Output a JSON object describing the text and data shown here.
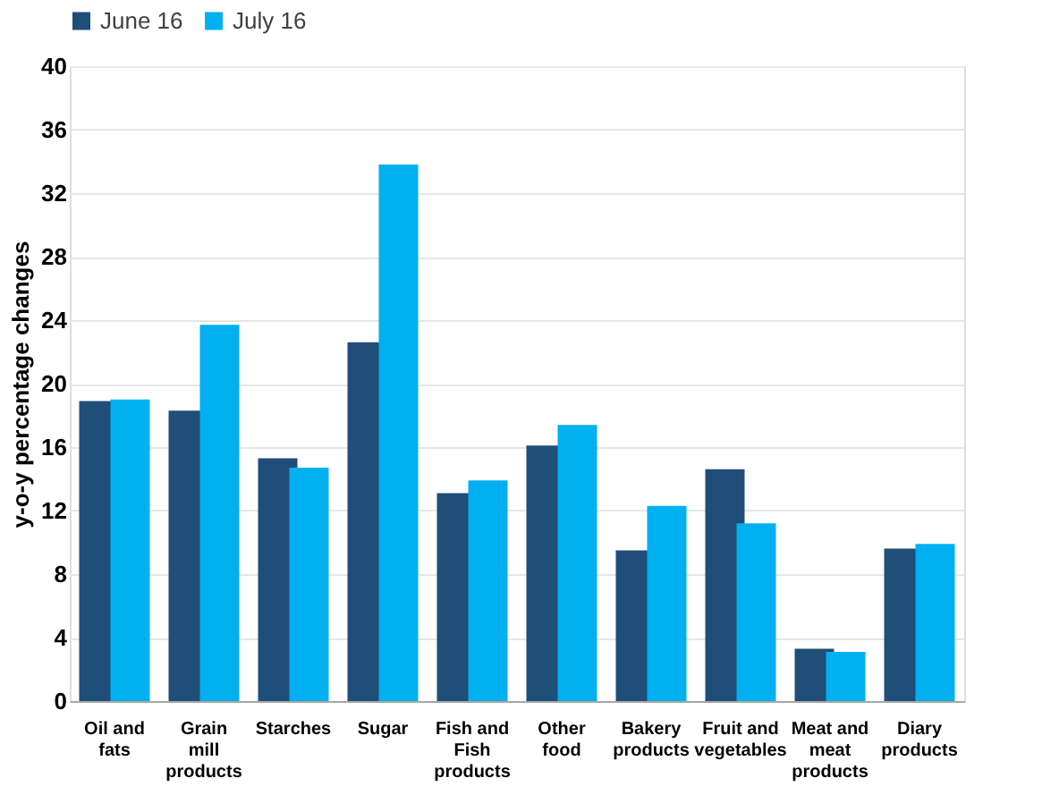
{
  "chart_data": {
    "type": "bar",
    "ylabel": "y-o-y percentage changes",
    "categories": [
      "Oil and fats",
      "Grain mill products",
      "Starches",
      "Sugar",
      "Fish and Fish products",
      "Other food",
      "Bakery products",
      "Fruit and vegetables",
      "Meat and meat products",
      "Diary products"
    ],
    "series": [
      {
        "name": "June 16",
        "color": "#1f4e79",
        "values": [
          18.9,
          18.3,
          15.3,
          22.6,
          13.1,
          16.1,
          9.5,
          14.6,
          3.3,
          9.6
        ]
      },
      {
        "name": "July 16",
        "color": "#00b0f0",
        "values": [
          19.0,
          23.7,
          14.7,
          33.8,
          13.9,
          17.4,
          12.3,
          11.2,
          3.1,
          9.9
        ]
      }
    ],
    "ylim": [
      0,
      40
    ],
    "yticks": [
      0,
      4,
      8,
      12,
      16,
      20,
      24,
      28,
      32,
      36,
      40
    ],
    "grid": "y",
    "legend": "top"
  }
}
